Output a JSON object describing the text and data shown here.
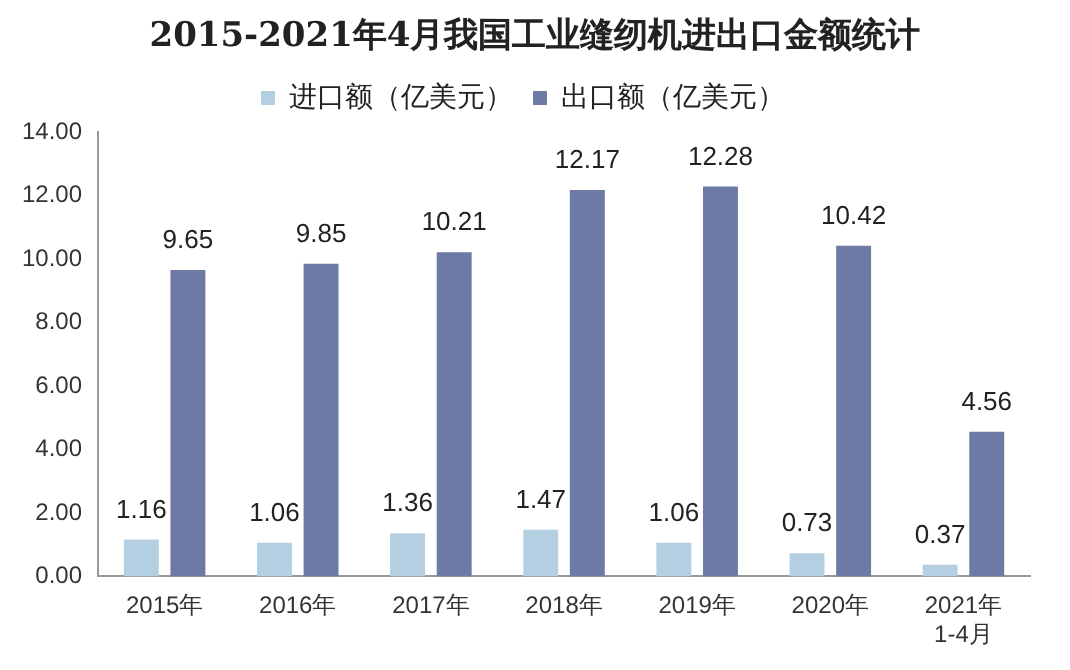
{
  "chart_data": {
    "type": "bar",
    "title": "2015-2021年4月我国工业缝纫机进出口金额统计",
    "categories": [
      "2015年",
      "2016年",
      "2017年",
      "2018年",
      "2019年",
      "2020年",
      "2021年\n1-4月"
    ],
    "series": [
      {
        "name": "进口额（亿美元）",
        "color": "#b4cfe2",
        "values": [
          1.16,
          1.06,
          1.36,
          1.47,
          1.06,
          0.73,
          0.37
        ]
      },
      {
        "name": "出口额（亿美元）",
        "color": "#6e7aa6",
        "values": [
          9.65,
          9.85,
          10.21,
          12.17,
          12.28,
          10.42,
          4.56
        ]
      }
    ],
    "ylim": [
      0,
      14
    ],
    "yticks": [
      {
        "value": 0,
        "label": "0.00"
      },
      {
        "value": 2,
        "label": "2.00"
      },
      {
        "value": 4,
        "label": "4.00"
      },
      {
        "value": 6,
        "label": "6.00"
      },
      {
        "value": 8,
        "label": "8.00"
      },
      {
        "value": 10,
        "label": "10.00"
      },
      {
        "value": 12,
        "label": "12.00"
      },
      {
        "value": 14,
        "label": "14.00"
      }
    ],
    "grid": false,
    "legend": "top",
    "data_labels": true
  }
}
